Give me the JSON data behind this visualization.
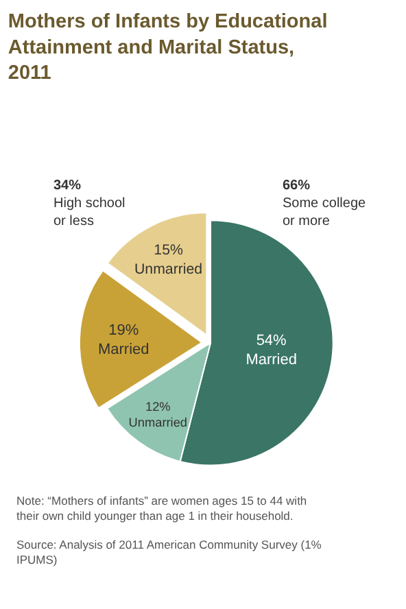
{
  "chart_data": {
    "type": "pie",
    "title": "Mothers of Infants by Educational Attainment and Marital Status, 2011",
    "categories": [
      "Married",
      "Unmarried",
      "Married",
      "Unmarried"
    ],
    "values": [
      54,
      12,
      19,
      15
    ],
    "value_labels": [
      "54%",
      "12%",
      "19%",
      "15%"
    ],
    "colors": [
      "#3a7565",
      "#8fc4b0",
      "#c9a237",
      "#e6cf8e"
    ],
    "annotations": [
      "34% High school or less",
      "66% Some college or more",
      "Note: “Mothers of infants” are women ages 15 to 44 with their own child younger than age 1 in their household.",
      "Source: Analysis of 2011 American Community Survey (1% IPUMS)"
    ]
  }
}
